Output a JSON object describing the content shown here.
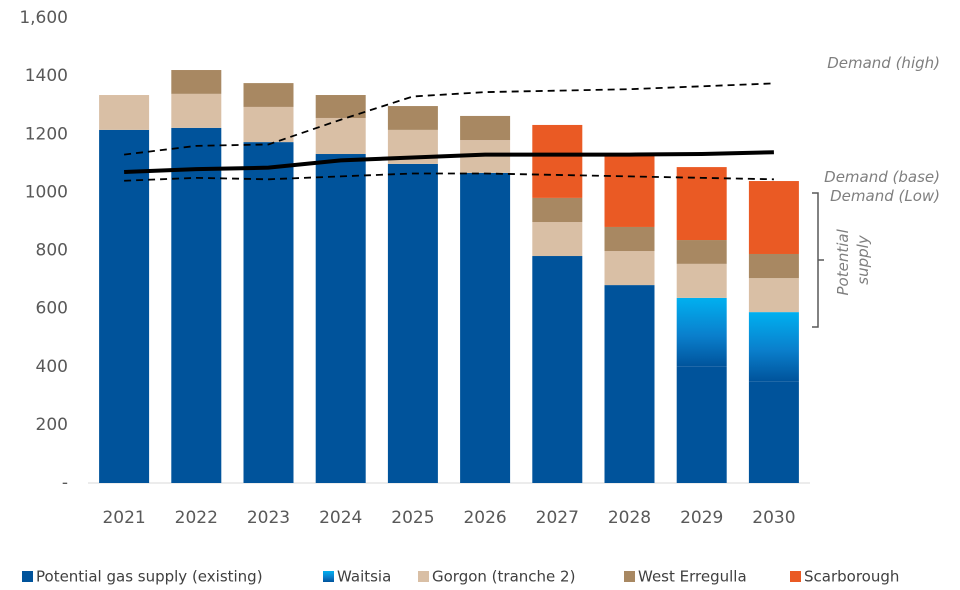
{
  "chart_data": {
    "type": "bar",
    "stacked": true,
    "categories": [
      "2021",
      "2022",
      "2023",
      "2024",
      "2025",
      "2026",
      "2027",
      "2028",
      "2029",
      "2030"
    ],
    "ylim": [
      0,
      1600
    ],
    "yticks": [
      {
        "value": 0,
        "label": "-"
      },
      200,
      400,
      600,
      800,
      1000,
      1200,
      1400,
      {
        "value": 1600,
        "label": "1,600"
      }
    ],
    "series": [
      {
        "name": "Potential gas supply (existing)",
        "color": "#00539b",
        "values": [
          1215,
          1222,
          1173,
          1132,
          1098,
          1067,
          781,
          681,
          400,
          350
        ]
      },
      {
        "name": "Waitsia",
        "color": "#00aeef",
        "gradient": true,
        "values": [
          0,
          0,
          0,
          0,
          0,
          0,
          0,
          0,
          237,
          238
        ]
      },
      {
        "name": "Gorgon (tranche 2)",
        "color": "#d9bfa5",
        "values": [
          120,
          117,
          121,
          124,
          117,
          113,
          117,
          117,
          117,
          117
        ]
      },
      {
        "name": "West Erregulla",
        "color": "#a88862",
        "values": [
          0,
          82,
          82,
          79,
          82,
          83,
          83,
          83,
          82,
          83
        ]
      },
      {
        "name": "Scarborough",
        "color": "#ea5a24",
        "values": [
          0,
          0,
          0,
          0,
          0,
          0,
          251,
          248,
          251,
          251
        ]
      }
    ],
    "lines": [
      {
        "name": "Demand (high)",
        "color": "#000000",
        "style": "dashed",
        "values": [
          1130,
          1160,
          1165,
          1250,
          1330,
          1345,
          1350,
          1355,
          1365,
          1375
        ]
      },
      {
        "name": "Demand (base)",
        "color": "#000000",
        "style": "solid",
        "values": [
          1070,
          1080,
          1085,
          1110,
          1120,
          1130,
          1130,
          1130,
          1132,
          1138
        ]
      },
      {
        "name": "Demand (Low)",
        "color": "#000000",
        "style": "dashed",
        "values": [
          1040,
          1050,
          1045,
          1055,
          1065,
          1065,
          1060,
          1055,
          1050,
          1045
        ]
      }
    ],
    "annotation": [
      "Potential",
      "supply"
    ]
  }
}
